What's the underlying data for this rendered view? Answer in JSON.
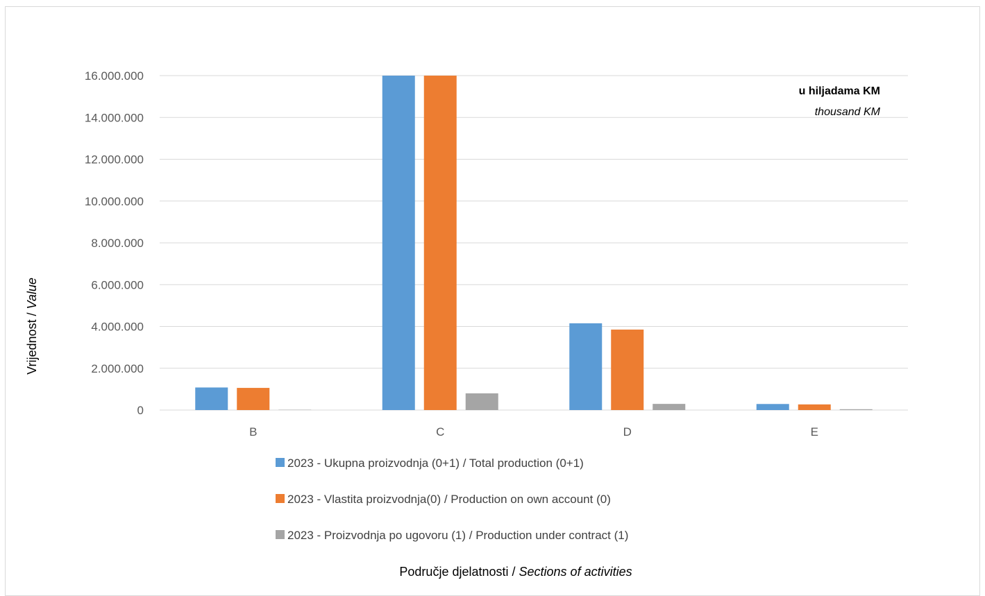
{
  "chart_data": {
    "type": "bar",
    "categories": [
      "B",
      "C",
      "D",
      "E"
    ],
    "series": [
      {
        "name": "2023 - Ukupna proizvodnja (0+1) / Total production (0+1)",
        "color": "#5b9bd5",
        "values": [
          1080000,
          16000000,
          4150000,
          290000
        ]
      },
      {
        "name": "2023 - Vlastita proizvodnja(0) / Production on own account (0)",
        "color": "#ed7d31",
        "values": [
          1060000,
          16000000,
          3850000,
          270000
        ]
      },
      {
        "name": "2023 - Proizvodnja po ugovoru (1) / Production under contract (1)",
        "color": "#a5a5a5",
        "values": [
          15000,
          800000,
          295000,
          40000
        ]
      }
    ],
    "yticks": [
      "0",
      "2.000.000",
      "4.000.000",
      "6.000.000",
      "8.000.000",
      "10.000.000",
      "12.000.000",
      "14.000.000",
      "16.000.000"
    ],
    "ylim": [
      0,
      16000000
    ],
    "ylabel": {
      "main": "Vrijednost  / ",
      "italic": "Value"
    },
    "xlabel": {
      "main": "Područje djelatnosti / ",
      "italic": "Sections of activities"
    },
    "annotation": {
      "bold": "u hiljadama KM",
      "italic": "thousand KM"
    },
    "grid": true,
    "legend_position": "bottom"
  }
}
